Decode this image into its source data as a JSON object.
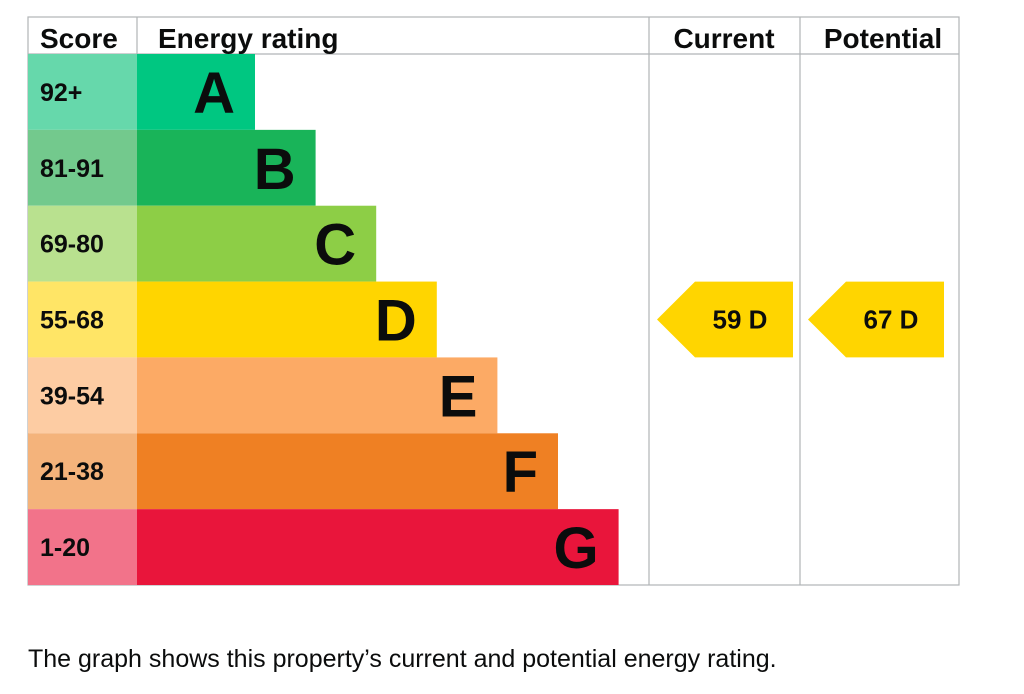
{
  "headers": {
    "score": "Score",
    "energy_rating": "Energy rating",
    "current": "Current",
    "potential": "Potential"
  },
  "chart_data": {
    "type": "bar",
    "categories": [
      "A",
      "B",
      "C",
      "D",
      "E",
      "F",
      "G"
    ],
    "bands": [
      {
        "letter": "A",
        "range": "92+",
        "min": 92,
        "max": 100,
        "color": "#00c781",
        "score_bg": "#66d8ab"
      },
      {
        "letter": "B",
        "range": "81-91",
        "min": 81,
        "max": 91,
        "color": "#19b459",
        "score_bg": "#73c98d"
      },
      {
        "letter": "C",
        "range": "69-80",
        "min": 69,
        "max": 80,
        "color": "#8dce46",
        "score_bg": "#b9e18f"
      },
      {
        "letter": "D",
        "range": "55-68",
        "min": 55,
        "max": 68,
        "color": "#ffd500",
        "score_bg": "#ffe566"
      },
      {
        "letter": "E",
        "range": "39-54",
        "min": 39,
        "max": 54,
        "color": "#fcaa65",
        "score_bg": "#fdcca3"
      },
      {
        "letter": "F",
        "range": "21-38",
        "min": 21,
        "max": 38,
        "color": "#ef8023",
        "score_bg": "#f4b37b"
      },
      {
        "letter": "G",
        "range": "1-20",
        "min": 1,
        "max": 20,
        "color": "#e9153b",
        "score_bg": "#f2738a"
      }
    ],
    "current": {
      "score": 59,
      "band": "D",
      "label": "59  D",
      "color": "#ffd500"
    },
    "potential": {
      "score": 67,
      "band": "D",
      "label": "67  D",
      "color": "#ffd500"
    }
  },
  "caption": "The graph shows this property’s current and potential energy rating."
}
